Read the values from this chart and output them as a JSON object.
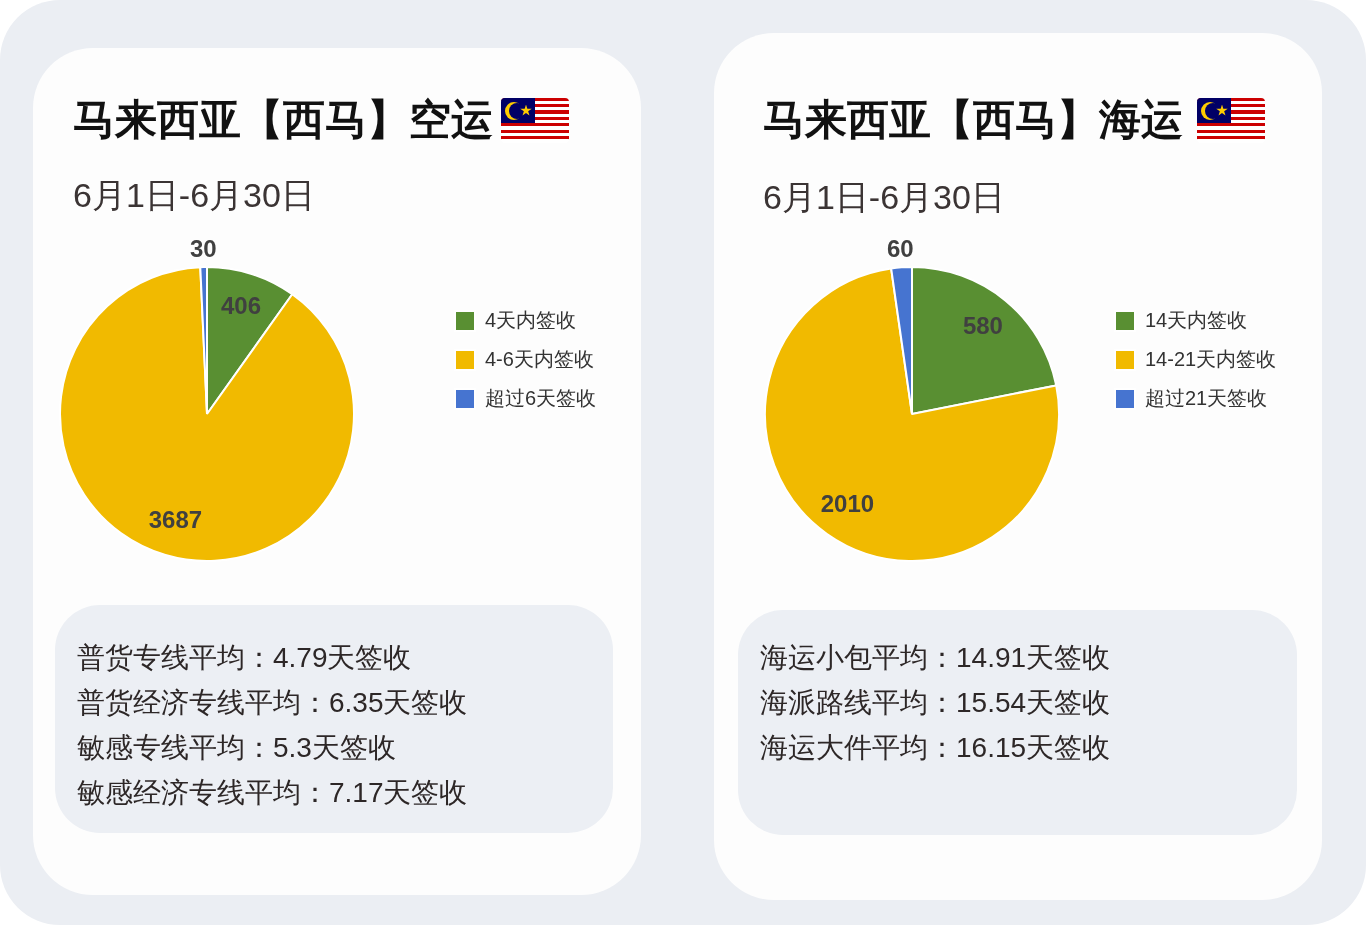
{
  "chart_data": [
    {
      "type": "pie",
      "title": "马来西亚【西马】空运",
      "subtitle": "6月1日-6月30日",
      "categories": [
        "4天内签收",
        "4-6天内签收",
        "超过6天签收"
      ],
      "values": [
        406,
        3687,
        30
      ],
      "colors": [
        "#598f32",
        "#f1ba00",
        "#4674d0"
      ],
      "data_labels": true,
      "legend": "right",
      "annotations": [
        "普货专线平均：4.79天签收",
        "普货经济专线平均：6.35天签收",
        "敏感专线平均：5.3天签收",
        "敏感经济专线平均：7.17天签收"
      ]
    },
    {
      "type": "pie",
      "title": "马来西亚【西马】海运",
      "subtitle": "6月1日-6月30日",
      "categories": [
        "14天内签收",
        "14-21天内签收",
        "超过21天签收"
      ],
      "values": [
        580,
        2010,
        60
      ],
      "colors": [
        "#598f32",
        "#f1ba00",
        "#4674d0"
      ],
      "data_labels": true,
      "legend": "right",
      "annotations": [
        "海运小包平均：14.91天签收",
        "海派路线平均：15.54天签收",
        "海运大件平均：16.15天签收"
      ]
    }
  ]
}
